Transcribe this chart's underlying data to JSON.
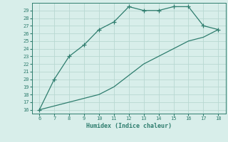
{
  "xlabel": "Humidex (Indice chaleur)",
  "x_upper": [
    6,
    7,
    8,
    9,
    10,
    11,
    12,
    13,
    14,
    15,
    16,
    17,
    18
  ],
  "y_upper": [
    16,
    20,
    23,
    24.5,
    26.5,
    27.5,
    29.5,
    29,
    29,
    29.5,
    29.5,
    27,
    26.5
  ],
  "x_lower": [
    6,
    7,
    8,
    9,
    10,
    11,
    12,
    13,
    14,
    15,
    16,
    17,
    18
  ],
  "y_lower": [
    16,
    16.5,
    17,
    17.5,
    18,
    19,
    20.5,
    22,
    23,
    24,
    25,
    25.5,
    26.5
  ],
  "line_color": "#2e7d6e",
  "bg_color": "#d8eeea",
  "grid_color": "#b8d8d2",
  "tick_color": "#2e7d6e",
  "xlim": [
    5.5,
    18.5
  ],
  "ylim": [
    15.5,
    30.0
  ],
  "xticks": [
    6,
    7,
    8,
    9,
    10,
    11,
    12,
    13,
    14,
    15,
    16,
    17,
    18
  ],
  "yticks": [
    16,
    17,
    18,
    19,
    20,
    21,
    22,
    23,
    24,
    25,
    26,
    27,
    28,
    29
  ]
}
